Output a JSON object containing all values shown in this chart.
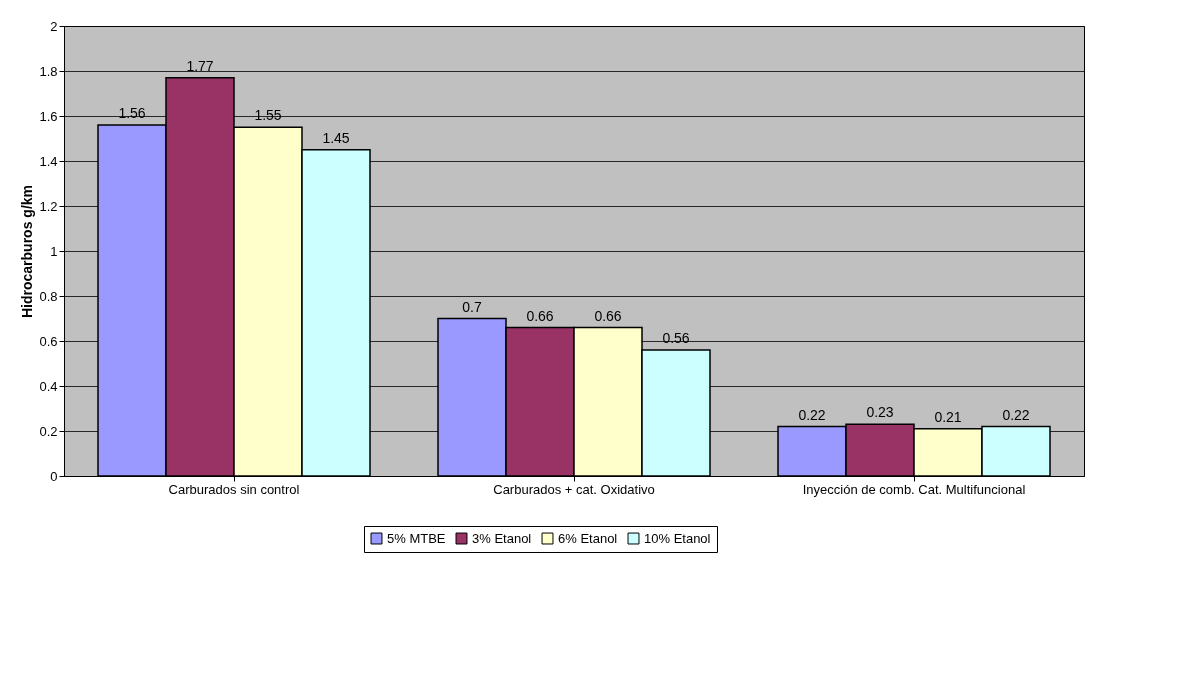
{
  "chart_data": {
    "type": "bar",
    "ylabel": "Hidrocarburos g/km",
    "categories": [
      "Carburados sin control",
      "Carburados + cat. Oxidativo",
      "Inyección de comb. Cat. Multifuncional"
    ],
    "series": [
      {
        "name": "5% MTBE",
        "color": "#9999ff",
        "values": [
          1.56,
          0.7,
          0.22
        ]
      },
      {
        "name": "3% Etanol",
        "color": "#993366",
        "values": [
          1.77,
          0.66,
          0.23
        ]
      },
      {
        "name": "6% Etanol",
        "color": "#ffffcc",
        "values": [
          1.55,
          0.66,
          0.21
        ]
      },
      {
        "name": "10% Etanol",
        "color": "#ccffff",
        "values": [
          1.45,
          0.56,
          0.22
        ]
      }
    ],
    "ylim": [
      0,
      2
    ],
    "yticks": [
      0,
      0.2,
      0.4,
      0.6,
      0.8,
      1,
      1.2,
      1.4,
      1.6,
      1.8,
      2
    ],
    "grid": "y",
    "legend": "bottom",
    "data_labels": true
  }
}
